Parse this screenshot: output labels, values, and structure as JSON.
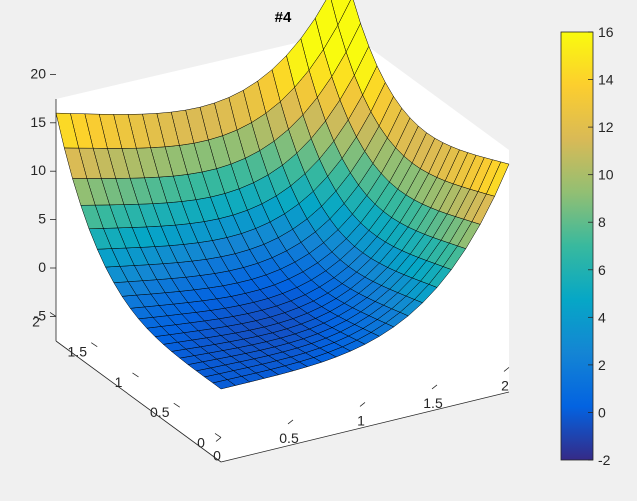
{
  "chart_data": {
    "type": "surface",
    "title": "#4",
    "x": [
      0,
      0.1,
      0.2,
      0.3,
      0.4,
      0.5,
      0.6,
      0.7,
      0.8,
      0.9,
      1.0,
      1.1,
      1.2,
      1.3,
      1.4,
      1.5,
      1.6,
      1.7,
      1.8,
      1.9,
      2.0
    ],
    "y": [
      0,
      0.1,
      0.2,
      0.3,
      0.4,
      0.5,
      0.6,
      0.7,
      0.8,
      0.9,
      1.0,
      1.1,
      1.2,
      1.3,
      1.4,
      1.5,
      1.6,
      1.7,
      1.8,
      1.9,
      2.0
    ],
    "function": "z = x^4 + y^4 - 2*x*y",
    "xlim": [
      0,
      2
    ],
    "ylim": [
      0,
      2
    ],
    "zlim": [
      -5,
      20
    ],
    "x_ticks": [
      "0",
      "0.5",
      "1",
      "1.5",
      "2"
    ],
    "y_ticks": [
      "0",
      "0.5",
      "1",
      "1.5",
      "2"
    ],
    "z_ticks": [
      "-5",
      "0",
      "5",
      "10",
      "15",
      "20"
    ],
    "colorbar": {
      "range": [
        -2,
        16
      ],
      "ticks": [
        "-2",
        "0",
        "2",
        "4",
        "6",
        "8",
        "10",
        "12",
        "14",
        "16"
      ],
      "colormap": "parula"
    },
    "grid": false,
    "colors": {
      "figure_bg": "#f0f0f0",
      "axes_bg": "#ffffff",
      "axis_line": "#262626",
      "edge": "#000000"
    }
  }
}
